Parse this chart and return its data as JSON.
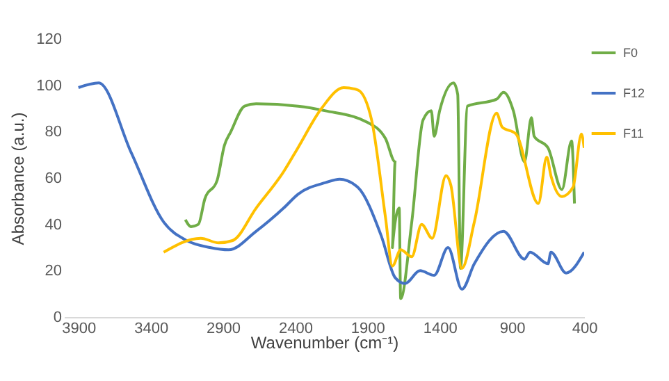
{
  "chart_data": {
    "type": "line",
    "xlabel": "Wavenumber (cm⁻¹)",
    "ylabel": "Absorbance (a.u.)",
    "xlim": [
      4000,
      400
    ],
    "xticks": [
      3900,
      3400,
      2900,
      2400,
      1900,
      1400,
      900,
      400
    ],
    "ylim": [
      0,
      120
    ],
    "yticks": [
      0,
      20,
      40,
      60,
      80,
      100,
      120
    ],
    "grid": false,
    "legend": "top right",
    "series": [
      {
        "name": "F0",
        "color": "#70ad47",
        "x": [
          3160,
          3120,
          3070,
          3025,
          2940,
          2890,
          2845,
          2750,
          2670,
          2380,
          2190,
          1900,
          1775,
          1708,
          1727,
          1680,
          1670,
          1593,
          1515,
          1458,
          1438,
          1400,
          1304,
          1275,
          1256,
          1208,
          1006,
          958,
          890,
          813,
          765,
          746,
          650,
          554,
          487,
          467
        ],
        "values": [
          42,
          39,
          40,
          51,
          59,
          74,
          80,
          91,
          92,
          91,
          89,
          84,
          77,
          67,
          30,
          47,
          8,
          41,
          85,
          89,
          78,
          89,
          101,
          96,
          21,
          91,
          94,
          97,
          89,
          67,
          86,
          78,
          73,
          55,
          76,
          49
        ]
      },
      {
        "name": "F12",
        "color": "#4472c4",
        "x": [
          3900,
          3760,
          3535,
          3310,
          3150,
          2990,
          2860,
          2670,
          2480,
          2380,
          2190,
          2092,
          1967,
          1804,
          1708,
          1640,
          1535,
          1438,
          1342,
          1246,
          1160,
          958,
          813,
          775,
          650,
          630,
          525,
          400
        ],
        "values": [
          99,
          101,
          71,
          41,
          33,
          30,
          29,
          37,
          47,
          53,
          58,
          59.5,
          56,
          35,
          17,
          14.5,
          20,
          18,
          30,
          12,
          23,
          37,
          25,
          28,
          23,
          28,
          19,
          28
        ]
      },
      {
        "name": "F11",
        "color": "#ffc000",
        "x": [
          3310,
          3054,
          2929,
          2833,
          2670,
          2477,
          2381,
          2218,
          2064,
          1967,
          1871,
          1775,
          1727,
          1670,
          1593,
          1525,
          1452,
          1356,
          1323,
          1246,
          1160,
          1006,
          968,
          872,
          717,
          659,
          630,
          554,
          477,
          419,
          400
        ],
        "values": [
          28,
          34,
          32,
          33,
          47,
          63,
          73,
          90,
          99,
          98,
          85,
          43,
          22,
          29,
          26,
          40,
          34,
          61,
          57,
          21,
          41,
          88,
          82,
          79,
          49,
          69,
          61,
          52,
          56,
          79,
          73
        ]
      }
    ]
  }
}
